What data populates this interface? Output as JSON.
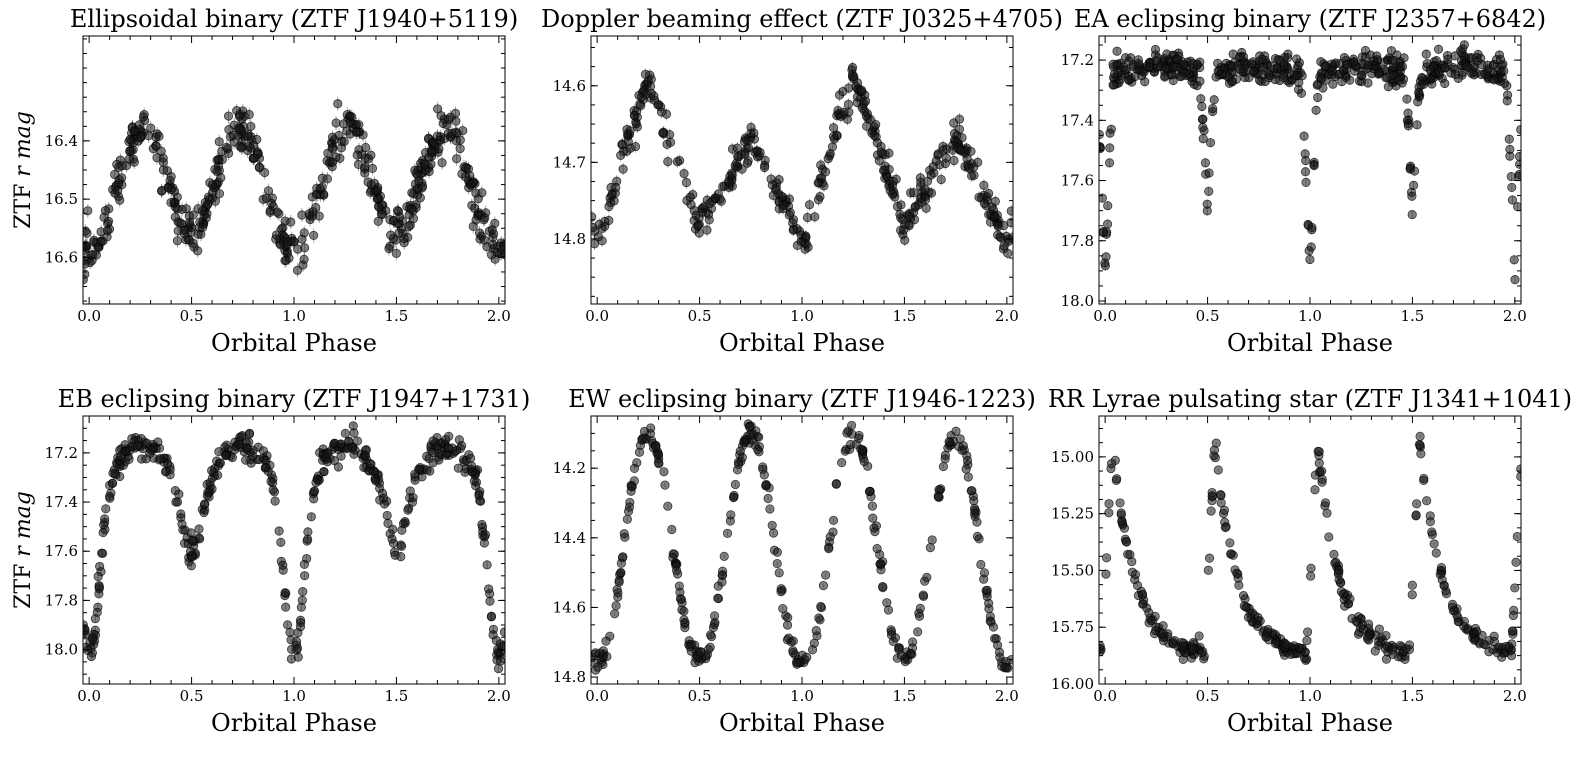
{
  "figure": {
    "xlabel": "Orbital Phase",
    "ylabel_prefix": "ZTF ",
    "ylabel_italic": "r mag"
  },
  "chart_data": [
    {
      "type": "scatter",
      "title": "Ellipsoidal binary (ZTF J1940+5119)",
      "xlabel": "Orbital Phase",
      "ylabel": "ZTF r mag",
      "xlim": [
        -0.03,
        2.03
      ],
      "ylim": [
        16.68,
        16.22
      ],
      "xticks": [
        0.0,
        0.5,
        1.0,
        1.5,
        2.0
      ],
      "xtick_labels": [
        "0.0",
        "0.5",
        "1.0",
        "1.5",
        "2.0"
      ],
      "yticks": [
        16.4,
        16.5,
        16.6
      ],
      "ytick_labels": [
        "16.4",
        "16.5",
        "16.6"
      ],
      "model": "ellipsoidal",
      "max_mag": 16.38,
      "min1": 16.59,
      "min2": 16.55,
      "scatter": 0.02,
      "err": 0.012,
      "n_points": 520,
      "show_ylabel": true,
      "series": [
        {
          "name": "ZTF r",
          "color": "#000000"
        }
      ]
    },
    {
      "type": "scatter",
      "title": "Doppler beaming effect (ZTF J0325+4705)",
      "xlabel": "Orbital Phase",
      "ylabel": "ZTF r mag",
      "xlim": [
        -0.03,
        2.03
      ],
      "ylim": [
        14.885,
        14.535
      ],
      "xticks": [
        0.0,
        0.5,
        1.0,
        1.5,
        2.0
      ],
      "xtick_labels": [
        "0.0",
        "0.5",
        "1.0",
        "1.5",
        "2.0"
      ],
      "yticks": [
        14.6,
        14.7,
        14.8
      ],
      "ytick_labels": [
        "14.6",
        "14.7",
        "14.8"
      ],
      "model": "beaming",
      "max1": 14.59,
      "max2": 14.665,
      "min1": 14.81,
      "min2": 14.785,
      "scatter": 0.012,
      "err": 0.008,
      "n_points": 420,
      "show_ylabel": false,
      "series": [
        {
          "name": "ZTF r",
          "color": "#000000"
        }
      ]
    },
    {
      "type": "scatter",
      "title": "EA eclipsing binary (ZTF J2357+6842)",
      "xlabel": "Orbital Phase",
      "ylabel": "ZTF r mag",
      "xlim": [
        -0.03,
        2.03
      ],
      "ylim": [
        18.01,
        17.12
      ],
      "xticks": [
        0.0,
        0.5,
        1.0,
        1.5,
        2.0
      ],
      "xtick_labels": [
        "0.0",
        "0.5",
        "1.0",
        "1.5",
        "2.0"
      ],
      "yticks": [
        17.2,
        17.4,
        17.6,
        17.8,
        18.0
      ],
      "ytick_labels": [
        "17.2",
        "17.4",
        "17.6",
        "17.8",
        "18.0"
      ],
      "model": "algol",
      "max_mag": 17.23,
      "depth1": 0.68,
      "depth2": 0.45,
      "width1": 0.045,
      "width2": 0.04,
      "scatter": 0.025,
      "err": 0.015,
      "n_points": 560,
      "show_ylabel": false,
      "series": [
        {
          "name": "ZTF r",
          "color": "#000000"
        }
      ]
    },
    {
      "type": "scatter",
      "title": "EB eclipsing binary (ZTF J1947+1731)",
      "xlabel": "Orbital Phase",
      "ylabel": "ZTF r mag",
      "xlim": [
        -0.03,
        2.03
      ],
      "ylim": [
        18.14,
        17.05
      ],
      "xticks": [
        0.0,
        0.5,
        1.0,
        1.5,
        2.0
      ],
      "xtick_labels": [
        "0.0",
        "0.5",
        "1.0",
        "1.5",
        "2.0"
      ],
      "yticks": [
        17.2,
        17.4,
        17.6,
        17.8,
        18.0
      ],
      "ytick_labels": [
        "17.2",
        "17.4",
        "17.6",
        "17.8",
        "18.0"
      ],
      "model": "betalyrae",
      "max_mag": 17.17,
      "min1": 18.02,
      "min2": 17.6,
      "scatter": 0.03,
      "err": 0.015,
      "n_points": 460,
      "show_ylabel": true,
      "series": [
        {
          "name": "ZTF r",
          "color": "#000000"
        }
      ]
    },
    {
      "type": "scatter",
      "title": "EW eclipsing binary (ZTF J1946-1223)",
      "xlabel": "Orbital Phase",
      "ylabel": "ZTF r mag",
      "xlim": [
        -0.03,
        2.03
      ],
      "ylim": [
        14.82,
        14.05
      ],
      "xticks": [
        0.0,
        0.5,
        1.0,
        1.5,
        2.0
      ],
      "xtick_labels": [
        "0.0",
        "0.5",
        "1.0",
        "1.5",
        "2.0"
      ],
      "yticks": [
        14.2,
        14.4,
        14.6,
        14.8
      ],
      "ytick_labels": [
        "14.2",
        "14.4",
        "14.6",
        "14.8"
      ],
      "model": "wuma",
      "max_mag": 14.1,
      "min1": 14.76,
      "min2": 14.74,
      "scatter": 0.015,
      "err": 0.006,
      "n_points": 360,
      "show_ylabel": false,
      "series": [
        {
          "name": "ZTF r",
          "color": "#000000"
        }
      ]
    },
    {
      "type": "scatter",
      "title": "RR Lyrae pulsating star (ZTF J1341+1041)",
      "xlabel": "Orbital Phase",
      "ylabel": "ZTF r mag",
      "xlim": [
        -0.03,
        2.03
      ],
      "ylim": [
        16.0,
        14.82
      ],
      "xticks": [
        0.0,
        0.5,
        1.0,
        1.5,
        2.0
      ],
      "xtick_labels": [
        "0.0",
        "0.5",
        "1.0",
        "1.5",
        "2.0"
      ],
      "yticks": [
        15.0,
        15.25,
        15.5,
        15.75,
        16.0
      ],
      "ytick_labels": [
        "15.00",
        "15.25",
        "15.50",
        "15.75",
        "16.00"
      ],
      "model": "rrlyrae",
      "max_mag": 14.93,
      "min_mag": 15.86,
      "scatter": 0.02,
      "err": 0.006,
      "n_points": 380,
      "show_ylabel": false,
      "series": [
        {
          "name": "ZTF r",
          "color": "#000000"
        }
      ]
    }
  ]
}
